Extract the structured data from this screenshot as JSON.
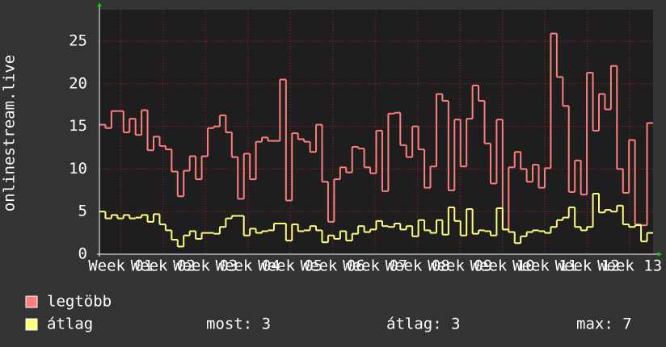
{
  "chart_data": {
    "type": "step-line",
    "y_label": "onlinestream.live",
    "ylim": [
      0,
      28.7
    ],
    "yticks": [
      0,
      5,
      10,
      15,
      20,
      25
    ],
    "xlim": [
      0,
      13.05
    ],
    "xticks": [
      {
        "value": 0.5,
        "label": "Week 01"
      },
      {
        "value": 1.5,
        "label": "Week 02"
      },
      {
        "value": 2.5,
        "label": "Week 03"
      },
      {
        "value": 3.5,
        "label": "Week 04"
      },
      {
        "value": 4.5,
        "label": "Week 05"
      },
      {
        "value": 5.5,
        "label": "Week 06"
      },
      {
        "value": 6.5,
        "label": "Week 07"
      },
      {
        "value": 7.5,
        "label": "Week 08"
      },
      {
        "value": 8.5,
        "label": "Week 09"
      },
      {
        "value": 9.5,
        "label": "Week 10"
      },
      {
        "value": 10.5,
        "label": "Week 11"
      },
      {
        "value": 11.5,
        "label": "Week 12"
      },
      {
        "value": 12.5,
        "label": "Week 13"
      }
    ],
    "grid": true,
    "series": [
      {
        "name": "legtöbb",
        "color": "#ff7f7f",
        "values": [
          15.2,
          14.8,
          16.8,
          16.8,
          14.3,
          15.9,
          14,
          16.9,
          12.2,
          13.8,
          12.7,
          12.3,
          9.7,
          6.8,
          9.8,
          11.5,
          8.8,
          11.5,
          14.8,
          15,
          16.3,
          14.3,
          11.4,
          6.5,
          11.8,
          8.8,
          13.2,
          13.7,
          13.3,
          13.3,
          20.5,
          6.3,
          14.2,
          13.5,
          13.2,
          12,
          15.2,
          8.5,
          3.8,
          8.8,
          10.2,
          9.6,
          12.6,
          12.4,
          10.2,
          9.5,
          14.5,
          7.4,
          16.5,
          16.6,
          12.8,
          11.4,
          15,
          12.3,
          7.8,
          10.3,
          18.8,
          18,
          7.5,
          15.8,
          10.3,
          15.9,
          19.8,
          18,
          13,
          8.3,
          15.8,
          2.9,
          10.2,
          12,
          10,
          8.5,
          10.5,
          7.8,
          10.1,
          25.9,
          20.8,
          17.4,
          7.3,
          11,
          7,
          21.3,
          14.5,
          18.8,
          17,
          22.1,
          10,
          7.2,
          13.4,
          3.5,
          3.4,
          15.4
        ]
      },
      {
        "name": "átlag",
        "color": "#ffff7f",
        "values": [
          5,
          4.2,
          4.6,
          4.2,
          4.6,
          4.2,
          4.3,
          4.6,
          3.8,
          4.7,
          3.5,
          2.8,
          1.7,
          0.9,
          2.2,
          2.7,
          1.8,
          2.5,
          2.5,
          2.4,
          3.2,
          4.2,
          4.5,
          4.5,
          2.2,
          3,
          2.5,
          2.7,
          2.8,
          3.6,
          3.6,
          1.6,
          3.5,
          2.7,
          2.8,
          3.3,
          2.8,
          1.4,
          2.2,
          1.8,
          2.7,
          1.6,
          2.4,
          3.3,
          2.6,
          2.9,
          3.9,
          3.3,
          3.2,
          3.6,
          2.9,
          3.3,
          2.1,
          4,
          2.8,
          2.5,
          4,
          2.3,
          5.5,
          3.9,
          2.2,
          5.3,
          2.4,
          2.8,
          2.7,
          2.2,
          5.4,
          2.9,
          2.6,
          1.3,
          2.1,
          2.6,
          2.8,
          2.7,
          2.5,
          3.2,
          4,
          4.3,
          5.5,
          3.2,
          2.8,
          3.2,
          7.1,
          4.9,
          5.2,
          5,
          5.7,
          3.5,
          3.2,
          3.4,
          1.5,
          2.5
        ]
      }
    ],
    "stats": [
      "most: 3",
      "átlag: 3",
      "max: 7"
    ]
  }
}
